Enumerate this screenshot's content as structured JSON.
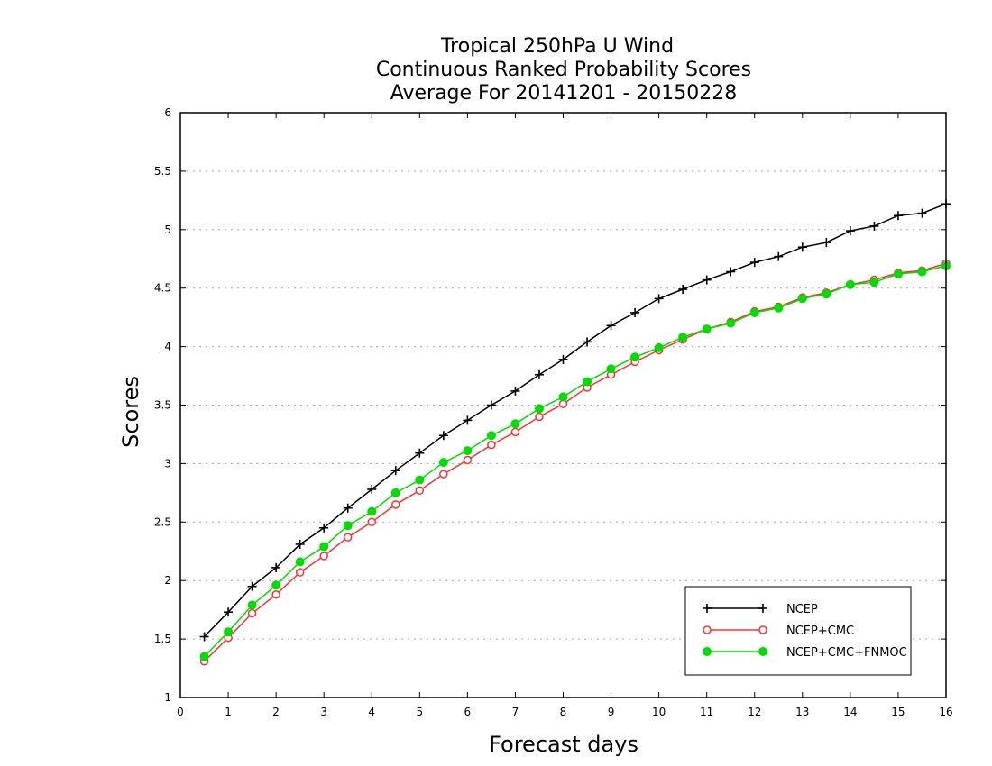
{
  "chart_data": {
    "type": "line",
    "title_lines": [
      "Tropical 250hPa U Wind",
      "Continuous Ranked Probability Scores",
      "Average For 20141201 - 20150228"
    ],
    "xlabel": "Forecast days",
    "ylabel": "Scores",
    "xlim": [
      0,
      16
    ],
    "ylim": [
      1,
      6
    ],
    "xticks": [
      "0",
      "1",
      "2",
      "3",
      "4",
      "5",
      "6",
      "7",
      "8",
      "9",
      "10",
      "11",
      "12",
      "13",
      "14",
      "15",
      "16"
    ],
    "yticks": [
      "1",
      "1.5",
      "2",
      "2.5",
      "3",
      "3.5",
      "4",
      "4.5",
      "5",
      "5.5",
      "6"
    ],
    "grid": "horizontal dotted",
    "legend_position": "bottom-right",
    "x": [
      0.5,
      1,
      1.5,
      2,
      2.5,
      3,
      3.5,
      4,
      4.5,
      5,
      5.5,
      6,
      6.5,
      7,
      7.5,
      8,
      8.5,
      9,
      9.5,
      10,
      10.5,
      11,
      11.5,
      12,
      12.5,
      13,
      13.5,
      14,
      14.5,
      15,
      15.5,
      16
    ],
    "series": [
      {
        "name": "NCEP",
        "color": "#000000",
        "marker": "plus",
        "values": [
          1.52,
          1.73,
          1.95,
          2.11,
          2.31,
          2.45,
          2.62,
          2.78,
          2.94,
          3.09,
          3.24,
          3.37,
          3.5,
          3.62,
          3.76,
          3.89,
          4.04,
          4.18,
          4.29,
          4.41,
          4.49,
          4.57,
          4.64,
          4.72,
          4.77,
          4.85,
          4.89,
          4.99,
          5.03,
          5.12,
          5.14,
          5.22
        ]
      },
      {
        "name": "NCEP+CMC",
        "color": "#ff3030",
        "marker": "open-circle",
        "values": [
          1.31,
          1.51,
          1.72,
          1.88,
          2.07,
          2.21,
          2.37,
          2.5,
          2.65,
          2.77,
          2.91,
          3.03,
          3.16,
          3.27,
          3.4,
          3.51,
          3.65,
          3.76,
          3.87,
          3.97,
          4.06,
          4.15,
          4.21,
          4.3,
          4.34,
          4.42,
          4.46,
          4.53,
          4.57,
          4.63,
          4.65,
          4.71
        ]
      },
      {
        "name": "NCEP+CMC+FNMOC",
        "color": "#00dd00",
        "marker": "filled-circle",
        "values": [
          1.35,
          1.56,
          1.79,
          1.96,
          2.16,
          2.29,
          2.47,
          2.59,
          2.75,
          2.86,
          3.01,
          3.11,
          3.24,
          3.34,
          3.47,
          3.57,
          3.7,
          3.81,
          3.91,
          3.99,
          4.08,
          4.15,
          4.2,
          4.29,
          4.33,
          4.41,
          4.45,
          4.53,
          4.55,
          4.62,
          4.64,
          4.69
        ]
      }
    ]
  }
}
